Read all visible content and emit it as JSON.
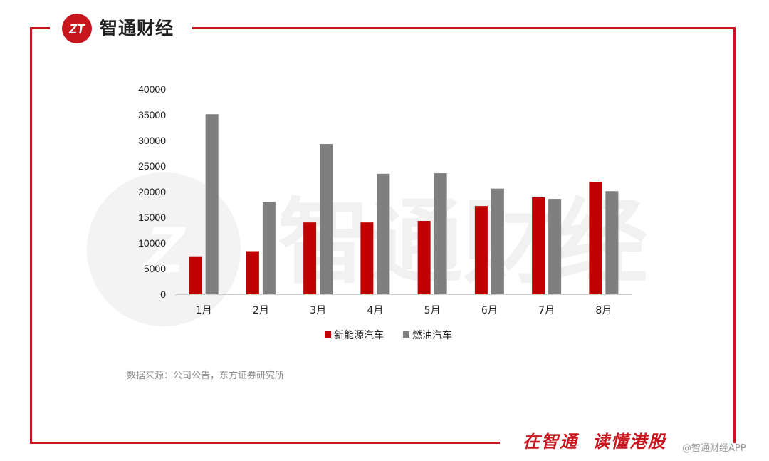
{
  "header": {
    "brand_name": "智通财经",
    "logo_letters": "ZT"
  },
  "chart_data": {
    "type": "bar",
    "categories": [
      "1月",
      "2月",
      "3月",
      "4月",
      "5月",
      "6月",
      "7月",
      "8月"
    ],
    "series": [
      {
        "name": "新能源汽车",
        "color": "#c00000",
        "values": [
          7400,
          8400,
          14000,
          14000,
          14300,
          17200,
          18900,
          21900
        ]
      },
      {
        "name": "燃油汽车",
        "color": "#7f7f7f",
        "values": [
          35100,
          18000,
          29300,
          23500,
          23600,
          20600,
          18600,
          20100
        ]
      }
    ],
    "yticks": [
      "0",
      "5000",
      "10000",
      "15000",
      "20000",
      "25000",
      "30000",
      "35000",
      "40000"
    ],
    "ylim": [
      0,
      40000
    ],
    "legend_position": "bottom",
    "grid": false
  },
  "source_note": "数据来源：公司公告，东方证券研究所",
  "footer": {
    "slogan_part1": "在智通",
    "slogan_part2": "读懂港股",
    "credit": "@智通财经APP"
  },
  "colors": {
    "brand_red": "#c8161e"
  }
}
